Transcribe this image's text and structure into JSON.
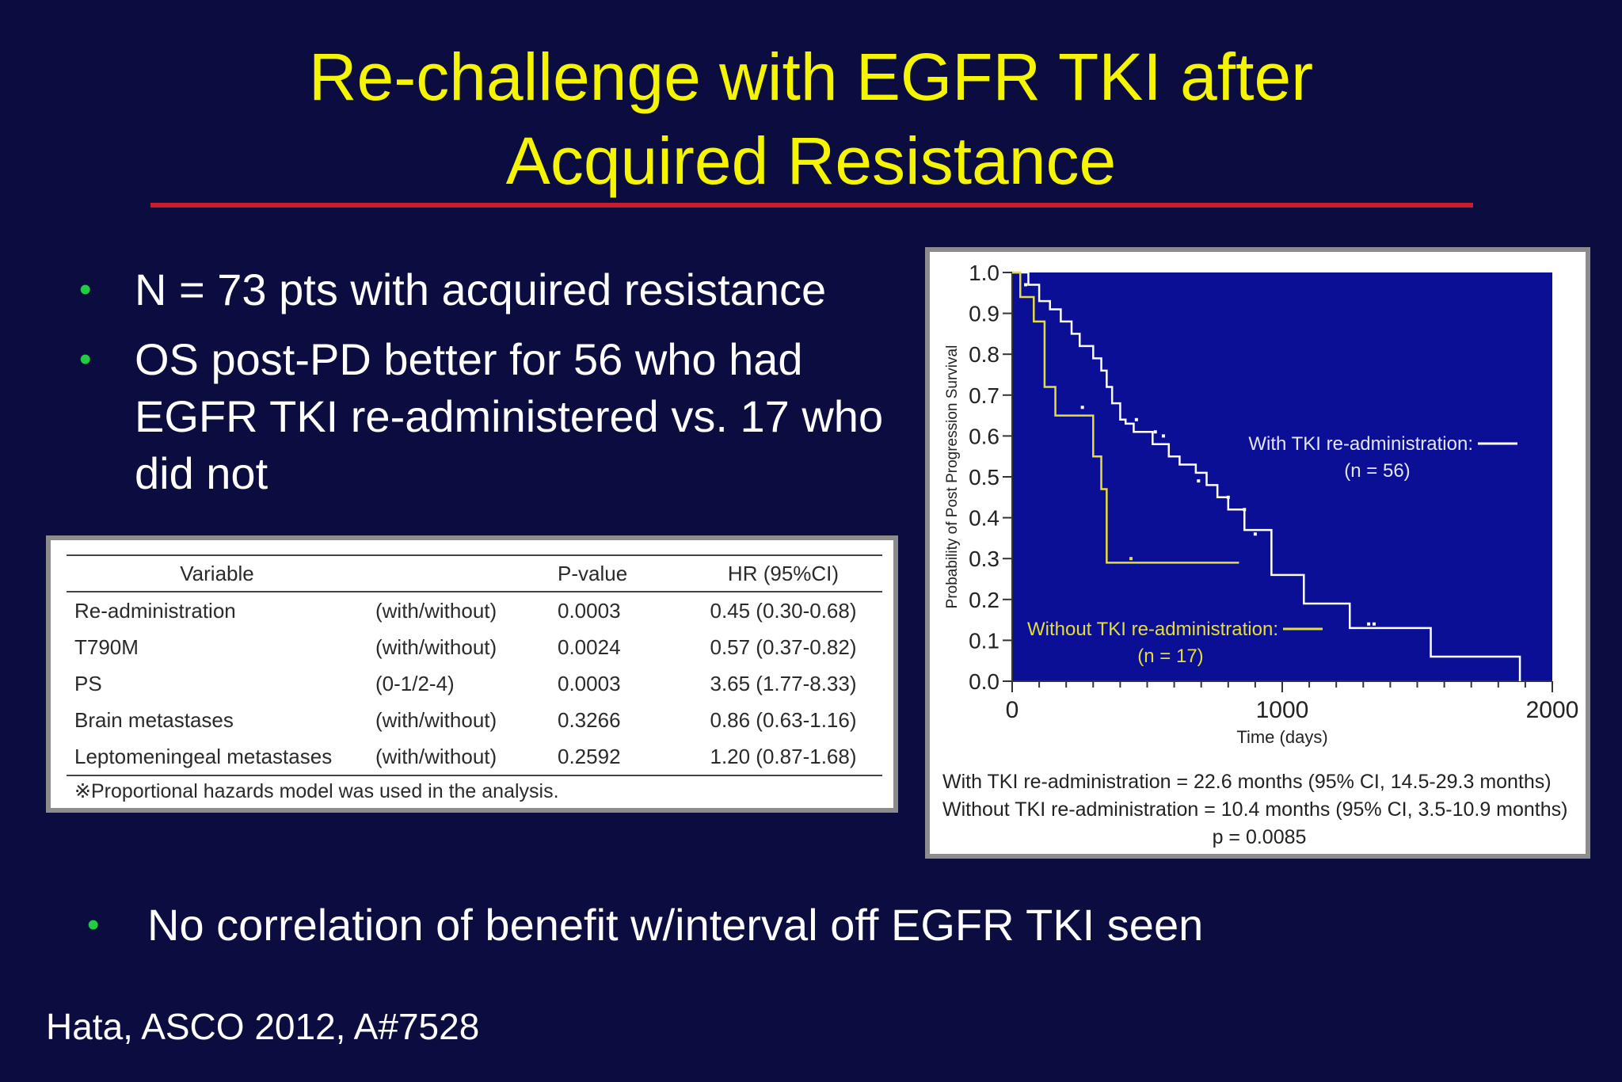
{
  "slide": {
    "title_line1": "Re-challenge with EGFR TKI after",
    "title_line2": "Acquired Resistance",
    "bullets": [
      "N = 73 pts with acquired resistance",
      "OS post-PD better for 56 who had EGFR TKI re-administered vs. 17 who did not"
    ],
    "bottom_bullet": "No correlation of benefit w/interval off EGFR TKI seen",
    "citation": "Hata, ASCO 2012, A#7528",
    "bullet_symbol": "•"
  },
  "table": {
    "headers": [
      "Variable",
      "",
      "P-value",
      "HR (95%CI)"
    ],
    "rows": [
      [
        "Re-administration",
        "(with/without)",
        "0.0003",
        "0.45 (0.30-0.68)"
      ],
      [
        "T790M",
        "(with/without)",
        "0.0024",
        "0.57 (0.37-0.82)"
      ],
      [
        "PS",
        "(0-1/2-4)",
        "0.0003",
        "3.65 (1.77-8.33)"
      ],
      [
        "Brain metastases",
        "(with/without)",
        "0.3266",
        "0.86 (0.63-1.16)"
      ],
      [
        "Leptomeningeal metastases",
        "(with/without)",
        "0.2592",
        "1.20 (0.87-1.68)"
      ]
    ],
    "footnote": "※Proportional hazards model was used in the analysis."
  },
  "chart_data": {
    "type": "line",
    "step": true,
    "xlabel": "Time (days)",
    "ylabel": "Probability of Post Progression Survival",
    "xlim": [
      0,
      2000
    ],
    "ylim": [
      0.0,
      1.0
    ],
    "x_ticks": [
      "0",
      "1000",
      "2000"
    ],
    "y_ticks": [
      "0.0",
      "0.1",
      "0.2",
      "0.3",
      "0.4",
      "0.5",
      "0.6",
      "0.7",
      "0.8",
      "0.9",
      "1.0"
    ],
    "plot_background": "#0b0f96",
    "series": [
      {
        "name": "With TKI re-administration",
        "n_label": "(n = 56)",
        "color": "#ffffff",
        "x": [
          0,
          60,
          100,
          140,
          180,
          220,
          250,
          300,
          330,
          350,
          370,
          400,
          420,
          450,
          520,
          580,
          620,
          680,
          720,
          760,
          800,
          860,
          960,
          1080,
          1250,
          1550,
          1880
        ],
        "y": [
          1.0,
          0.97,
          0.93,
          0.91,
          0.88,
          0.85,
          0.82,
          0.79,
          0.76,
          0.72,
          0.68,
          0.64,
          0.63,
          0.61,
          0.58,
          0.55,
          0.53,
          0.51,
          0.48,
          0.45,
          0.42,
          0.37,
          0.26,
          0.19,
          0.13,
          0.06,
          0.0
        ],
        "censor_x": [
          50,
          260,
          460,
          530,
          560,
          690,
          800,
          860,
          900,
          1320,
          1340
        ],
        "censor_y": [
          0.97,
          0.67,
          0.64,
          0.61,
          0.6,
          0.49,
          0.45,
          0.42,
          0.36,
          0.14,
          0.14
        ]
      },
      {
        "name": "Without TKI re-administration",
        "n_label": "(n = 17)",
        "color": "#e5dd3a",
        "x": [
          0,
          30,
          80,
          120,
          160,
          220,
          300,
          330,
          350,
          420,
          840
        ],
        "y": [
          1.0,
          0.94,
          0.88,
          0.72,
          0.65,
          0.65,
          0.55,
          0.47,
          0.29,
          0.29,
          0.29
        ],
        "censor_x": [
          440
        ],
        "censor_y": [
          0.3
        ]
      }
    ],
    "notes": [
      "With TKI re-administration = 22.6 months (95% CI, 14.5-29.3 months)",
      "Without TKI re-administration = 10.4 months (95% CI, 3.5-10.9 months)",
      "p = 0.0085"
    ]
  }
}
